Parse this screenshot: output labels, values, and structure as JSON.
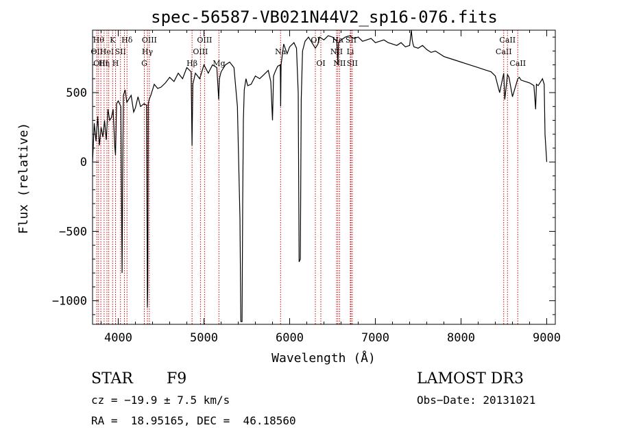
{
  "chart_data": {
    "type": "line",
    "title": "spec-56587-VB021N44V2_sp16-076.fits",
    "xlabel": "Wavelength (Å)",
    "ylabel": "Flux (relative)",
    "xlim": [
      3700,
      9100
    ],
    "ylim": [
      -1170,
      950
    ],
    "x_ticks": [
      4000,
      5000,
      6000,
      7000,
      8000,
      9000
    ],
    "x_tick_labels": [
      "4000",
      "5000",
      "6000",
      "7000",
      "8000",
      "9000"
    ],
    "y_ticks": [
      -1000,
      -500,
      0,
      500
    ],
    "y_tick_labels": [
      "−1000",
      "−500",
      "0",
      "500"
    ],
    "line_color": "#000000",
    "marker_color": "#cc0000",
    "spectrum": {
      "x": [
        3700,
        3720,
        3740,
        3760,
        3780,
        3800,
        3820,
        3840,
        3860,
        3880,
        3900,
        3920,
        3940,
        3960,
        3968,
        3980,
        4000,
        4030,
        4045,
        4050,
        4060,
        4080,
        4100,
        4120,
        4150,
        4180,
        4200,
        4230,
        4260,
        4300,
        4330,
        4340,
        4345,
        4350,
        4360,
        4380,
        4420,
        4460,
        4500,
        4550,
        4600,
        4650,
        4700,
        4750,
        4800,
        4850,
        4861,
        4870,
        4900,
        4950,
        5000,
        5050,
        5100,
        5150,
        5172,
        5180,
        5200,
        5250,
        5300,
        5350,
        5390,
        5420,
        5430,
        5445,
        5452,
        5460,
        5470,
        5490,
        5510,
        5550,
        5600,
        5650,
        5700,
        5750,
        5780,
        5800,
        5812,
        5830,
        5860,
        5890,
        5895,
        5900,
        5930,
        5970,
        6000,
        6050,
        6080,
        6100,
        6110,
        6125,
        6135,
        6150,
        6180,
        6220,
        6260,
        6300,
        6330,
        6350,
        6400,
        6450,
        6500,
        6550,
        6563,
        6570,
        6600,
        6650,
        6700,
        6750,
        6800,
        6850,
        6900,
        6950,
        7000,
        7050,
        7100,
        7150,
        7200,
        7250,
        7300,
        7350,
        7400,
        7420,
        7430,
        7440,
        7450,
        7500,
        7550,
        7600,
        7650,
        7700,
        7750,
        7800,
        7850,
        7900,
        7950,
        8000,
        8050,
        8100,
        8150,
        8200,
        8250,
        8300,
        8350,
        8400,
        8450,
        8498,
        8510,
        8542,
        8560,
        8600,
        8662,
        8680,
        8700,
        8750,
        8800,
        8850,
        8870,
        8880,
        8900,
        8950,
        8970,
        8980,
        9000
      ],
      "y": [
        0,
        280,
        150,
        330,
        120,
        250,
        180,
        300,
        160,
        380,
        300,
        320,
        380,
        110,
        50,
        420,
        440,
        400,
        -800,
        -200,
        480,
        520,
        430,
        450,
        480,
        360,
        390,
        470,
        400,
        420,
        410,
        -1050,
        -900,
        420,
        450,
        480,
        560,
        530,
        540,
        570,
        610,
        580,
        640,
        600,
        680,
        650,
        120,
        560,
        640,
        600,
        700,
        640,
        700,
        680,
        450,
        600,
        650,
        700,
        720,
        680,
        400,
        -400,
        -1150,
        -1150,
        -300,
        300,
        520,
        600,
        550,
        560,
        620,
        600,
        630,
        660,
        580,
        300,
        620,
        650,
        690,
        700,
        400,
        700,
        850,
        780,
        830,
        860,
        820,
        500,
        -720,
        -700,
        450,
        800,
        870,
        900,
        860,
        820,
        850,
        900,
        880,
        910,
        900,
        870,
        700,
        860,
        880,
        900,
        910,
        890,
        900,
        870,
        880,
        890,
        860,
        870,
        880,
        860,
        850,
        840,
        860,
        830,
        840,
        950,
        880,
        850,
        830,
        820,
        840,
        810,
        790,
        800,
        780,
        760,
        750,
        740,
        730,
        720,
        710,
        700,
        690,
        680,
        670,
        660,
        650,
        620,
        500,
        640,
        450,
        630,
        610,
        470,
        600,
        610,
        590,
        580,
        570,
        550,
        380,
        560,
        550,
        600,
        560,
        200,
        0
      ]
    },
    "line_markers": [
      {
        "x": 3750,
        "label": "OII",
        "row": 1
      },
      {
        "x": 3770,
        "label": "Hθ",
        "row": 0
      },
      {
        "x": 3797,
        "label": "OIII",
        "row": 2
      },
      {
        "x": 3835,
        "label": "Hη",
        "row": 2
      },
      {
        "x": 3868,
        "label": "HeI",
        "row": 1
      },
      {
        "x": 3889,
        "label": "",
        "row": 0
      },
      {
        "x": 3934,
        "label": "K",
        "row": 0
      },
      {
        "x": 3968,
        "label": "H",
        "row": 2
      },
      {
        "x": 4026,
        "label": "SII",
        "row": 1
      },
      {
        "x": 4072,
        "label": "",
        "row": 0
      },
      {
        "x": 4102,
        "label": "Hδ",
        "row": 0
      },
      {
        "x": 4304,
        "label": "G",
        "row": 2
      },
      {
        "x": 4340,
        "label": "Hγ",
        "row": 1
      },
      {
        "x": 4363,
        "label": "OIII",
        "row": 0
      },
      {
        "x": 4861,
        "label": "Hβ",
        "row": 2
      },
      {
        "x": 4959,
        "label": "OIII",
        "row": 1
      },
      {
        "x": 5007,
        "label": "OIII",
        "row": 0
      },
      {
        "x": 5175,
        "label": "Mg",
        "row": 2
      },
      {
        "x": 5894,
        "label": "Na",
        "row": 1
      },
      {
        "x": 6300,
        "label": "OI",
        "row": 0
      },
      {
        "x": 6364,
        "label": "OI",
        "row": 2
      },
      {
        "x": 6548,
        "label": "NII",
        "row": 1
      },
      {
        "x": 6563,
        "label": "Hα",
        "row": 0
      },
      {
        "x": 6583,
        "label": "NII",
        "row": 2
      },
      {
        "x": 6716,
        "label": "SII",
        "row": 0
      },
      {
        "x": 6731,
        "label": "SII",
        "row": 2
      },
      {
        "x": 6708,
        "label": "Li",
        "row": 1
      },
      {
        "x": 8498,
        "label": "CaII",
        "row": 1
      },
      {
        "x": 8542,
        "label": "CaII",
        "row": 0
      },
      {
        "x": 8662,
        "label": "CaII",
        "row": 2
      }
    ]
  },
  "info": {
    "object_class": "STAR",
    "subclass": "F9",
    "release": "LAMOST DR3",
    "cz": "cz = −19.9 ± 7.5 km/s",
    "obs_date": "Obs−Date: 20131021",
    "coords": "RA =  18.95165, DEC =  46.18560"
  }
}
